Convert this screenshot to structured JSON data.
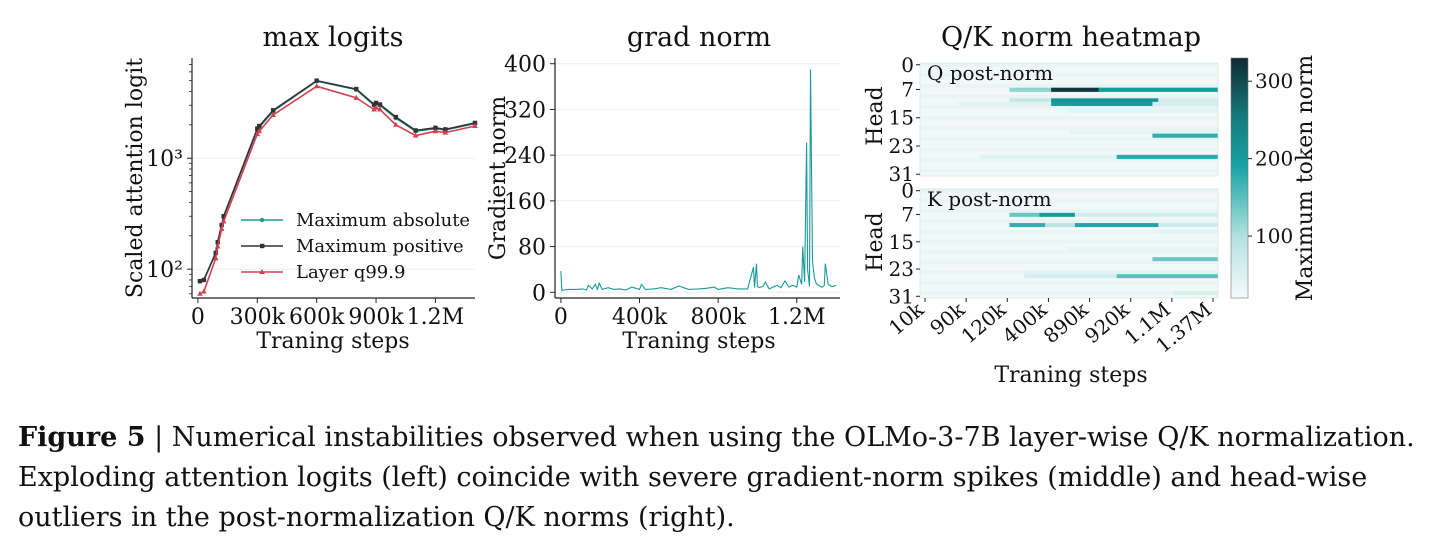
{
  "figure": {
    "caption_label": "Figure 5",
    "caption_sep": " | ",
    "caption_text": "Numerical instabilities observed when using the OLMo-3-7B layer-wise Q/K normalization. Exploding attention logits (left) coincide with severe gradient-norm spikes (middle) and head-wise outliers in the post-normalization Q/K norms (right)."
  },
  "chart_data": [
    {
      "type": "line",
      "title": "max logits",
      "xlabel": "Traning steps",
      "ylabel": "Scaled attention logit",
      "yscale": "log",
      "xlim": [
        -30000,
        1400000
      ],
      "ylim": [
        55,
        8000
      ],
      "x_ticks": [
        0,
        300000,
        600000,
        900000,
        1200000
      ],
      "x_tick_labels": [
        "0",
        "300k",
        "600k",
        "900k",
        "1.2M"
      ],
      "y_ticks": [
        100,
        1000
      ],
      "y_tick_labels": [
        "10²",
        "10³"
      ],
      "grid": true,
      "legend": "lower-right",
      "series": [
        {
          "name": "Maximum absolute",
          "color": "#1a9a9a",
          "marker": "dot",
          "x": [
            10000,
            30000,
            90000,
            100000,
            120000,
            130000,
            300000,
            310000,
            380000,
            600000,
            800000,
            890000,
            900000,
            920000,
            1000000,
            1100000,
            1200000,
            1250000,
            1400000
          ],
          "y": [
            78,
            80,
            140,
            175,
            250,
            300,
            1800,
            1900,
            2650,
            4950,
            4150,
            3000,
            3100,
            3000,
            2300,
            1750,
            1850,
            1800,
            2050
          ]
        },
        {
          "name": "Maximum positive",
          "color": "#333333",
          "marker": "square",
          "x": [
            10000,
            30000,
            90000,
            100000,
            120000,
            130000,
            300000,
            310000,
            380000,
            600000,
            800000,
            890000,
            900000,
            920000,
            1000000,
            1100000,
            1200000,
            1250000,
            1400000
          ],
          "y": [
            78,
            80,
            140,
            175,
            250,
            300,
            1850,
            1950,
            2700,
            5000,
            4200,
            3050,
            3150,
            3050,
            2350,
            1780,
            1880,
            1820,
            2080
          ]
        },
        {
          "name": "Layer q99.9",
          "color": "#d64050",
          "marker": "triangle",
          "x": [
            10000,
            30000,
            90000,
            100000,
            120000,
            130000,
            300000,
            310000,
            380000,
            600000,
            800000,
            890000,
            900000,
            920000,
            1000000,
            1100000,
            1200000,
            1250000,
            1400000
          ],
          "y": [
            60,
            63,
            125,
            160,
            230,
            270,
            1650,
            1750,
            2450,
            4450,
            3500,
            2750,
            2850,
            2750,
            2000,
            1600,
            1750,
            1700,
            1950
          ]
        }
      ]
    },
    {
      "type": "line",
      "title": "grad norm",
      "xlabel": "Traning steps",
      "ylabel": "Gradient norm",
      "xlim": [
        -30000,
        1420000
      ],
      "ylim": [
        -10,
        410
      ],
      "x_ticks": [
        0,
        400000,
        800000,
        1200000
      ],
      "x_tick_labels": [
        "0",
        "400k",
        "800k",
        "1.2M"
      ],
      "y_ticks": [
        0,
        80,
        160,
        240,
        320,
        400
      ],
      "y_tick_labels": [
        "0",
        "80",
        "160",
        "240",
        "320",
        "400"
      ],
      "grid": true,
      "series": [
        {
          "color": "#1a9a9a",
          "x": [
            0,
            5000,
            15000,
            40000,
            80000,
            110000,
            130000,
            140000,
            160000,
            175000,
            185000,
            195000,
            210000,
            240000,
            270000,
            300000,
            330000,
            360000,
            400000,
            410000,
            430000,
            470000,
            510000,
            560000,
            600000,
            650000,
            700000,
            740000,
            780000,
            800000,
            850000,
            900000,
            950000,
            980000,
            985000,
            995000,
            1000000,
            1010000,
            1030000,
            1040000,
            1060000,
            1080000,
            1100000,
            1120000,
            1140000,
            1160000,
            1180000,
            1200000,
            1210000,
            1225000,
            1230000,
            1240000,
            1250000,
            1255000,
            1265000,
            1270000,
            1280000,
            1290000,
            1300000,
            1320000,
            1330000,
            1340000,
            1345000,
            1360000,
            1380000,
            1400000
          ],
          "y": [
            37,
            3,
            4,
            5,
            5,
            6,
            4,
            12,
            6,
            14,
            5,
            16,
            5,
            8,
            5,
            6,
            4,
            9,
            5,
            14,
            5,
            6,
            8,
            5,
            11,
            5,
            6,
            7,
            9,
            5,
            8,
            6,
            6,
            44,
            8,
            50,
            10,
            8,
            11,
            18,
            6,
            9,
            12,
            8,
            20,
            9,
            12,
            9,
            30,
            14,
            80,
            18,
            262,
            40,
            10,
            390,
            55,
            25,
            15,
            10,
            9,
            12,
            50,
            14,
            10,
            12
          ]
        }
      ]
    },
    {
      "type": "heatmap",
      "title": "Q/K norm heatmap",
      "xlabel": "Traning steps",
      "ylabel": "Head",
      "x_tick_labels": [
        "10k",
        "90k",
        "120k",
        "400k",
        "890k",
        "920k",
        "1.1M",
        "1.37M"
      ],
      "y_tick_labels": [
        "0",
        "7",
        "15",
        "23",
        "31"
      ],
      "colorbar_label": "Maximum token norm",
      "colorbar_ticks": [
        100,
        200,
        300
      ],
      "colorbar_range": [
        20,
        330
      ],
      "colormap": [
        "#f4fafa",
        "#b6e2e2",
        "#18a3a3",
        "#137c7c",
        "#102a33"
      ],
      "panels": [
        {
          "label": "Q post-norm",
          "bands": [
            {
              "head": 7,
              "cols": [
                0.3,
                1.0
              ],
              "value": 120
            },
            {
              "head": 7,
              "cols": [
                0.44,
                0.6
              ],
              "value": 320
            },
            {
              "head": 7,
              "cols": [
                0.6,
                1.0
              ],
              "value": 200
            },
            {
              "head": 10,
              "cols": [
                0.3,
                0.44
              ],
              "value": 80
            },
            {
              "head": 10,
              "cols": [
                0.44,
                0.8
              ],
              "value": 215
            },
            {
              "head": 10,
              "cols": [
                0.8,
                1.0
              ],
              "value": 60
            },
            {
              "head": 11,
              "cols": [
                0.13,
                0.44
              ],
              "value": 45
            },
            {
              "head": 11,
              "cols": [
                0.44,
                0.78
              ],
              "value": 200
            },
            {
              "head": 11,
              "cols": [
                0.78,
                1.0
              ],
              "value": 60
            },
            {
              "head": 13,
              "cols": [
                0.5,
                1.0
              ],
              "value": 40
            },
            {
              "head": 19,
              "cols": [
                0.5,
                1.0
              ],
              "value": 40
            },
            {
              "head": 20,
              "cols": [
                0.78,
                1.0
              ],
              "value": 175
            },
            {
              "head": 26,
              "cols": [
                0.2,
                0.66
              ],
              "value": 45
            },
            {
              "head": 26,
              "cols": [
                0.66,
                1.0
              ],
              "value": 180
            }
          ]
        },
        {
          "label": "K post-norm",
          "bands": [
            {
              "head": 7,
              "cols": [
                0.3,
                0.4
              ],
              "value": 140
            },
            {
              "head": 7,
              "cols": [
                0.4,
                0.52
              ],
              "value": 200
            },
            {
              "head": 7,
              "cols": [
                0.52,
                1.0
              ],
              "value": 60
            },
            {
              "head": 10,
              "cols": [
                0.1,
                0.3
              ],
              "value": 25
            },
            {
              "head": 10,
              "cols": [
                0.3,
                0.42
              ],
              "value": 175
            },
            {
              "head": 10,
              "cols": [
                0.42,
                0.52
              ],
              "value": 90
            },
            {
              "head": 10,
              "cols": [
                0.52,
                0.8
              ],
              "value": 185
            },
            {
              "head": 10,
              "cols": [
                0.8,
                1.0
              ],
              "value": 70
            },
            {
              "head": 12,
              "cols": [
                0.8,
                1.0
              ],
              "value": 45
            },
            {
              "head": 17,
              "cols": [
                0.5,
                1.0
              ],
              "value": 40
            },
            {
              "head": 20,
              "cols": [
                0.78,
                1.0
              ],
              "value": 140
            },
            {
              "head": 24,
              "cols": [
                0.35,
                1.0
              ],
              "value": 45
            },
            {
              "head": 25,
              "cols": [
                0.35,
                0.66
              ],
              "value": 60
            },
            {
              "head": 25,
              "cols": [
                0.66,
                1.0
              ],
              "value": 150
            },
            {
              "head": 30,
              "cols": [
                0.85,
                1.0
              ],
              "value": 55
            }
          ]
        }
      ]
    }
  ]
}
